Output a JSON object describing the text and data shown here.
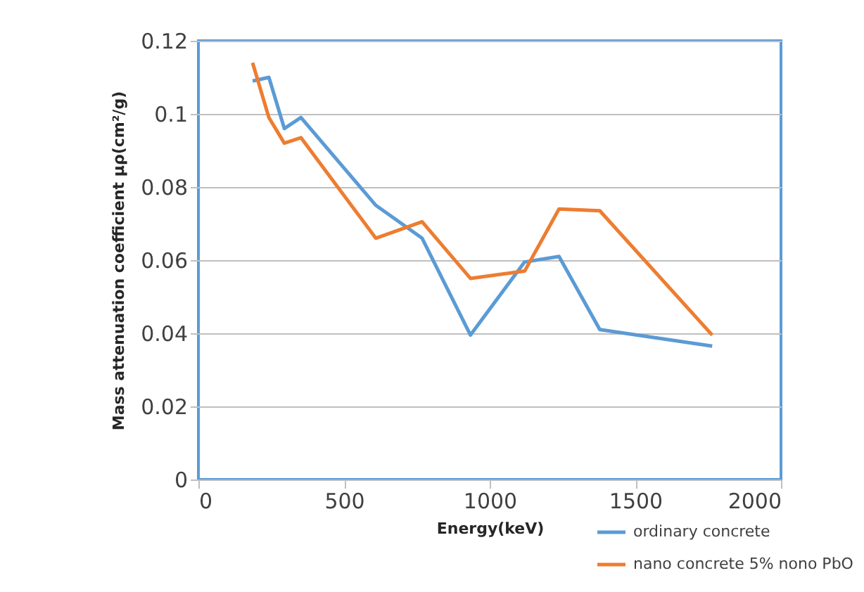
{
  "chart_data": {
    "type": "line",
    "xlabel": "Energy(keV)",
    "ylabel": "Mass attenuation coefficient μρ(cm²/g)",
    "x": [
      186,
      242,
      295,
      352,
      609,
      768,
      934,
      1120,
      1238,
      1378,
      1764
    ],
    "series": [
      {
        "name": "ordinary concrete",
        "color": "#5b9bd5",
        "values": [
          0.109,
          0.11,
          0.096,
          0.099,
          0.075,
          0.066,
          0.0395,
          0.0595,
          0.061,
          0.041,
          0.0365
        ]
      },
      {
        "name": "nano concrete 5% nono PbO",
        "color": "#ed7d31",
        "values": [
          0.114,
          0.099,
          0.092,
          0.0935,
          0.066,
          0.0705,
          0.055,
          0.057,
          0.074,
          0.0735,
          0.0395
        ]
      }
    ],
    "xlim": [
      0,
      2000
    ],
    "xticks": [
      0,
      500,
      1000,
      1500,
      2000
    ],
    "ylim": [
      0,
      0.12
    ],
    "yticks": [
      0,
      0.02,
      0.04,
      0.06,
      0.08,
      0.1,
      0.12
    ],
    "grid": "y",
    "legend": "bottom right",
    "marker": "none",
    "line_style": "solid"
  }
}
